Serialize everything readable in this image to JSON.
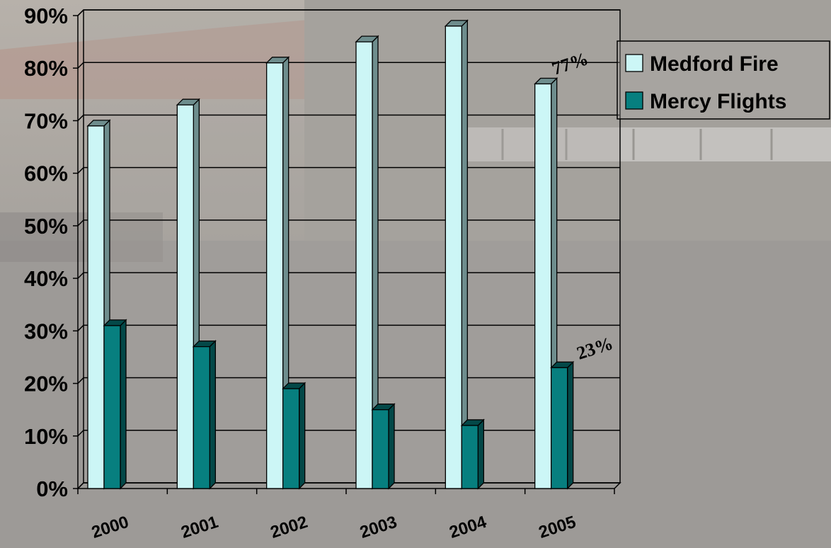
{
  "chart_data": {
    "type": "bar",
    "categories": [
      "2000",
      "2001",
      "2002",
      "2003",
      "2004",
      "2005"
    ],
    "series": [
      {
        "name": "Medford Fire",
        "values": [
          69,
          73,
          81,
          85,
          88,
          77
        ]
      },
      {
        "name": "Mercy Flights",
        "values": [
          31,
          27,
          19,
          15,
          12,
          23
        ]
      }
    ],
    "ylim": [
      0,
      90
    ],
    "yticks": [
      "0%",
      "10%",
      "20%",
      "30%",
      "40%",
      "50%",
      "60%",
      "70%",
      "80%",
      "90%"
    ],
    "title": "",
    "xlabel": "",
    "ylabel": "",
    "grid": true,
    "legend_position": "right",
    "annotations": [
      "77%",
      "23%"
    ],
    "colors": {
      "Medford Fire": "#ccf6f6",
      "Medford Fire side": "#6e8d8d",
      "Mercy Flights": "#077f7f",
      "Mercy Flights side": "#034848"
    }
  }
}
